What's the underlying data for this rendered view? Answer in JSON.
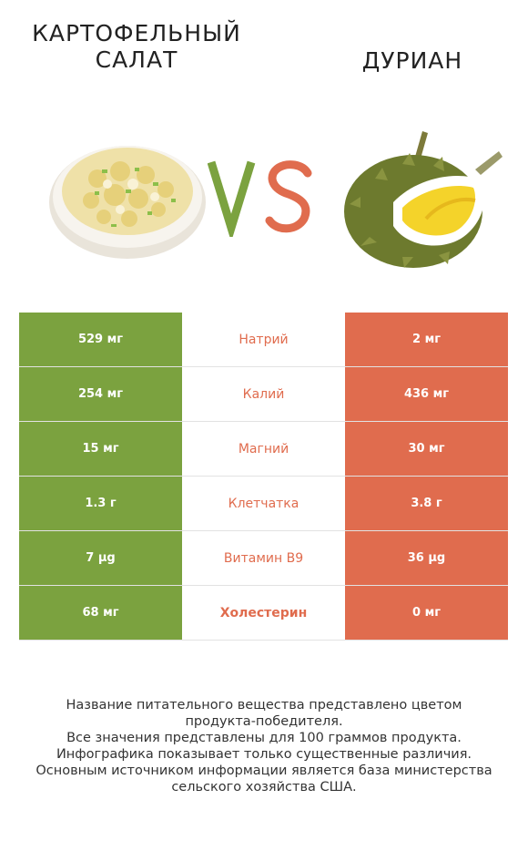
{
  "left_food": {
    "title_line1": "КАРТОФЕЛЬНЫЙ",
    "title_line2": "САЛАТ",
    "image_icon": "potato-salad-bowl"
  },
  "right_food": {
    "title": "ДУРИАН",
    "image_icon": "durian-fruit"
  },
  "vs": {
    "v": "V",
    "s": "S",
    "v_color": "#7ba23f",
    "s_color": "#e06c4e"
  },
  "colors": {
    "left": "#7ba23f",
    "right": "#e06c4e"
  },
  "rows": [
    {
      "left": "529 мг",
      "name": "Натрий",
      "right": "2 мг"
    },
    {
      "left": "254 мг",
      "name": "Калий",
      "right": "436 мг"
    },
    {
      "left": "15 мг",
      "name": "Магний",
      "right": "30 мг"
    },
    {
      "left": "1.3 г",
      "name": "Клетчатка",
      "right": "3.8 г"
    },
    {
      "left": "7 µg",
      "name": "Витамин B9",
      "right": "36 µg"
    },
    {
      "left": "68 мг",
      "name": "Холестерин",
      "right": "0 мг"
    }
  ],
  "footer": {
    "line1": "Название питательного вещества представлено цветом",
    "line2": "продукта-победителя.",
    "line3": "Все значения представлены для 100 граммов продукта.",
    "line4": "Инфографика показывает только существенные различия.",
    "line5": "Основным источником информации является база министерства",
    "line6": "сельского хозяйства США."
  }
}
